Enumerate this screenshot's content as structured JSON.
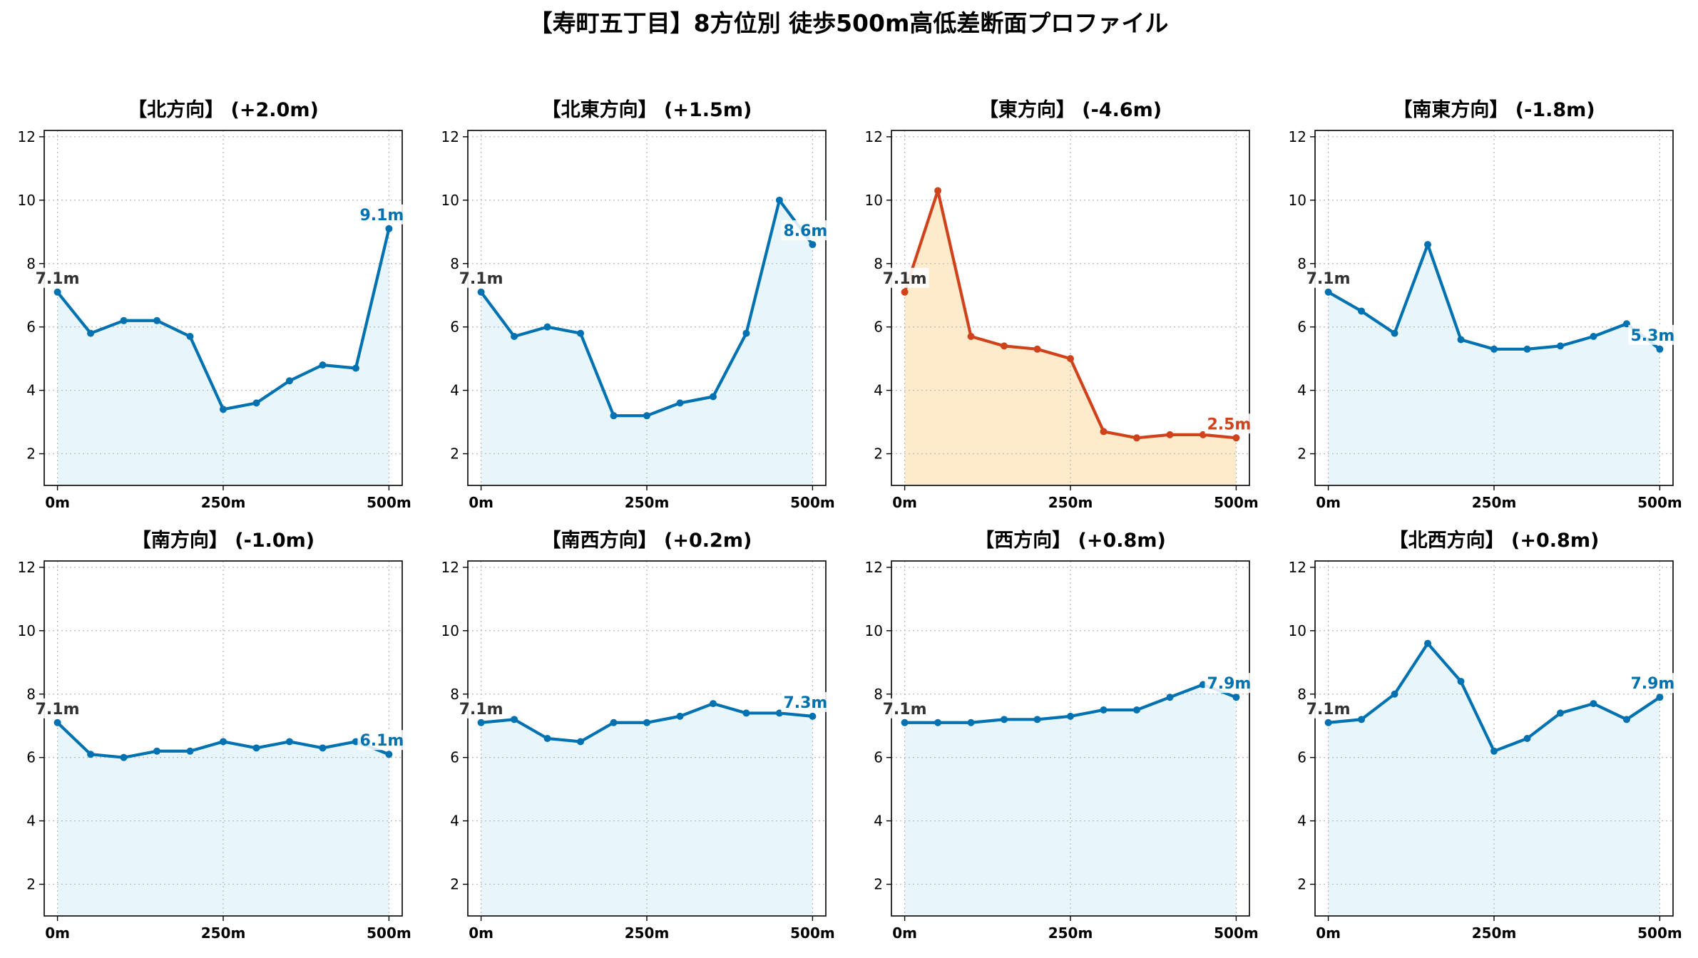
{
  "figure_title": "【寿町五丁目】8方位別 徒歩500m高低差断面プロファイル",
  "colors": {
    "rise": "#0072b2",
    "rise_fill": "#e8f6fc",
    "fall": "#d0421b",
    "fall_fill": "#fdebcc",
    "start_label": "#333333",
    "grid": "#bbbbbb",
    "axis": "#000000"
  },
  "chart_data": [
    {
      "type": "area",
      "title": "【北方向】 (+2.0m)",
      "x": [
        0,
        50,
        100,
        150,
        200,
        250,
        300,
        350,
        400,
        450,
        500
      ],
      "y": [
        7.1,
        5.8,
        6.2,
        6.2,
        5.7,
        3.4,
        3.6,
        4.3,
        4.8,
        4.7,
        9.1
      ],
      "start_label": "7.1m",
      "end_label": "9.1m",
      "tone": "rise",
      "xticks": [
        "0m",
        "250m",
        "500m"
      ],
      "yticks": [
        2,
        4,
        6,
        8,
        10,
        12
      ],
      "xlim": [
        -20,
        520
      ],
      "ylim": [
        1.0,
        12.2
      ],
      "grid": true
    },
    {
      "type": "area",
      "title": "【北東方向】 (+1.5m)",
      "x": [
        0,
        50,
        100,
        150,
        200,
        250,
        300,
        350,
        400,
        450,
        500
      ],
      "y": [
        7.1,
        5.7,
        6.0,
        5.8,
        3.2,
        3.2,
        3.6,
        3.8,
        5.8,
        10.0,
        8.6
      ],
      "start_label": "7.1m",
      "end_label": "8.6m",
      "tone": "rise",
      "xticks": [
        "0m",
        "250m",
        "500m"
      ],
      "yticks": [
        2,
        4,
        6,
        8,
        10,
        12
      ],
      "xlim": [
        -20,
        520
      ],
      "ylim": [
        1.0,
        12.2
      ],
      "grid": true
    },
    {
      "type": "area",
      "title": "【東方向】 (-4.6m)",
      "x": [
        0,
        50,
        100,
        150,
        200,
        250,
        300,
        350,
        400,
        450,
        500
      ],
      "y": [
        7.1,
        10.3,
        5.7,
        5.4,
        5.3,
        5.0,
        2.7,
        2.5,
        2.6,
        2.6,
        2.5
      ],
      "start_label": "7.1m",
      "end_label": "2.5m",
      "tone": "fall",
      "xticks": [
        "0m",
        "250m",
        "500m"
      ],
      "yticks": [
        2,
        4,
        6,
        8,
        10,
        12
      ],
      "xlim": [
        -20,
        520
      ],
      "ylim": [
        1.0,
        12.2
      ],
      "grid": true
    },
    {
      "type": "area",
      "title": "【南東方向】 (-1.8m)",
      "x": [
        0,
        50,
        100,
        150,
        200,
        250,
        300,
        350,
        400,
        450,
        500
      ],
      "y": [
        7.1,
        6.5,
        5.8,
        8.6,
        5.6,
        5.3,
        5.3,
        5.4,
        5.7,
        6.1,
        5.3
      ],
      "start_label": "7.1m",
      "end_label": "5.3m",
      "tone": "rise",
      "xticks": [
        "0m",
        "250m",
        "500m"
      ],
      "yticks": [
        2,
        4,
        6,
        8,
        10,
        12
      ],
      "xlim": [
        -20,
        520
      ],
      "ylim": [
        1.0,
        12.2
      ],
      "grid": true
    },
    {
      "type": "area",
      "title": "【南方向】 (-1.0m)",
      "x": [
        0,
        50,
        100,
        150,
        200,
        250,
        300,
        350,
        400,
        450,
        500
      ],
      "y": [
        7.1,
        6.1,
        6.0,
        6.2,
        6.2,
        6.5,
        6.3,
        6.5,
        6.3,
        6.5,
        6.1
      ],
      "start_label": "7.1m",
      "end_label": "6.1m",
      "tone": "rise",
      "xticks": [
        "0m",
        "250m",
        "500m"
      ],
      "yticks": [
        2,
        4,
        6,
        8,
        10,
        12
      ],
      "xlim": [
        -20,
        520
      ],
      "ylim": [
        1.0,
        12.2
      ],
      "grid": true
    },
    {
      "type": "area",
      "title": "【南西方向】 (+0.2m)",
      "x": [
        0,
        50,
        100,
        150,
        200,
        250,
        300,
        350,
        400,
        450,
        500
      ],
      "y": [
        7.1,
        7.2,
        6.6,
        6.5,
        7.1,
        7.1,
        7.3,
        7.7,
        7.4,
        7.4,
        7.3
      ],
      "start_label": "7.1m",
      "end_label": "7.3m",
      "tone": "rise",
      "xticks": [
        "0m",
        "250m",
        "500m"
      ],
      "yticks": [
        2,
        4,
        6,
        8,
        10,
        12
      ],
      "xlim": [
        -20,
        520
      ],
      "ylim": [
        1.0,
        12.2
      ],
      "grid": true
    },
    {
      "type": "area",
      "title": "【西方向】 (+0.8m)",
      "x": [
        0,
        50,
        100,
        150,
        200,
        250,
        300,
        350,
        400,
        450,
        500
      ],
      "y": [
        7.1,
        7.1,
        7.1,
        7.2,
        7.2,
        7.3,
        7.5,
        7.5,
        7.9,
        8.3,
        7.9
      ],
      "start_label": "7.1m",
      "end_label": "7.9m",
      "tone": "rise",
      "xticks": [
        "0m",
        "250m",
        "500m"
      ],
      "yticks": [
        2,
        4,
        6,
        8,
        10,
        12
      ],
      "xlim": [
        -20,
        520
      ],
      "ylim": [
        1.0,
        12.2
      ],
      "grid": true
    },
    {
      "type": "area",
      "title": "【北西方向】 (+0.8m)",
      "x": [
        0,
        50,
        100,
        150,
        200,
        250,
        300,
        350,
        400,
        450,
        500
      ],
      "y": [
        7.1,
        7.2,
        8.0,
        9.6,
        8.4,
        6.2,
        6.6,
        7.4,
        7.7,
        7.2,
        7.9
      ],
      "start_label": "7.1m",
      "end_label": "7.9m",
      "tone": "rise",
      "xticks": [
        "0m",
        "250m",
        "500m"
      ],
      "yticks": [
        2,
        4,
        6,
        8,
        10,
        12
      ],
      "xlim": [
        -20,
        520
      ],
      "ylim": [
        1.0,
        12.2
      ],
      "grid": true
    }
  ]
}
